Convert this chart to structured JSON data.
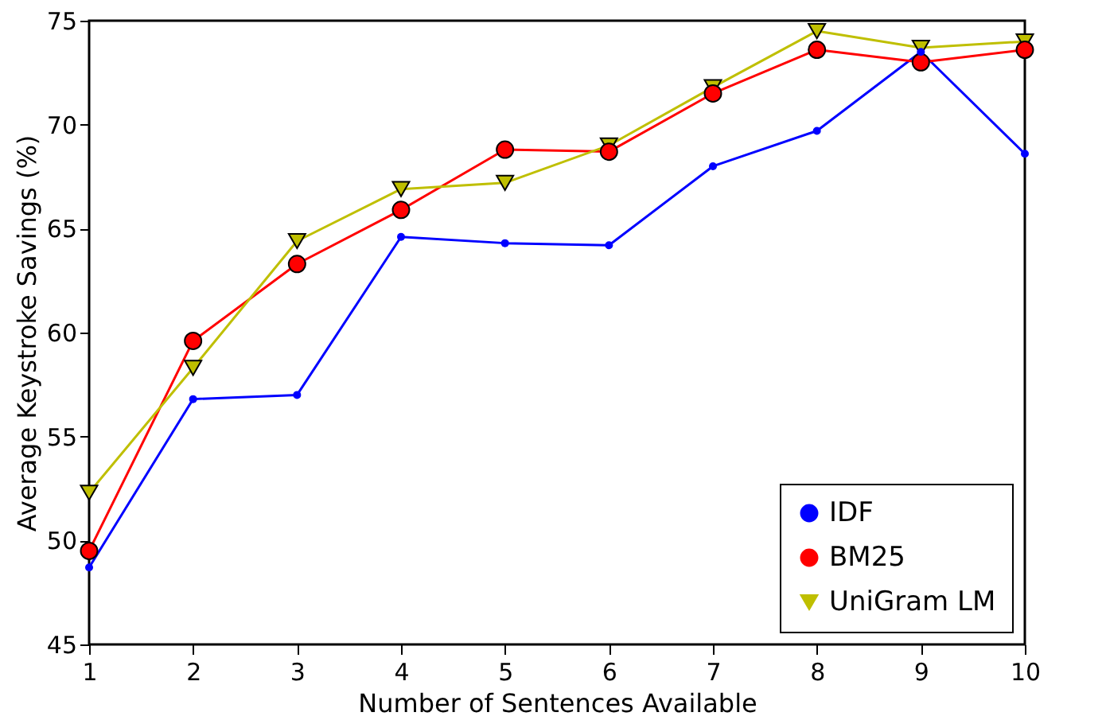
{
  "chart_data": {
    "type": "line",
    "xlabel": "Number of Sentences Available",
    "ylabel": "Average Keystroke Savings (%)",
    "x": [
      1,
      2,
      3,
      4,
      5,
      6,
      7,
      8,
      9,
      10
    ],
    "xlim": [
      1,
      10
    ],
    "xticks": [
      1,
      2,
      3,
      4,
      5,
      6,
      7,
      8,
      9,
      10
    ],
    "ylim": [
      45,
      75
    ],
    "yticks": [
      45,
      50,
      55,
      60,
      65,
      70,
      75
    ],
    "grid": false,
    "legend": "bottom right",
    "line_style": "solid",
    "series": [
      {
        "name": "IDF",
        "color": "#0000ff",
        "marker": "circle",
        "values": [
          48.7,
          56.8,
          57.0,
          64.6,
          64.3,
          64.2,
          68.0,
          69.7,
          73.5,
          68.6
        ]
      },
      {
        "name": "BM25",
        "color": "#ff0000",
        "marker": "circle",
        "values": [
          49.5,
          59.6,
          63.3,
          65.9,
          68.8,
          68.7,
          71.5,
          73.6,
          73.0,
          73.6
        ]
      },
      {
        "name": "UniGram LM",
        "color": "#bfbf00",
        "marker": "triangle-down",
        "values": [
          52.3,
          58.3,
          64.4,
          66.9,
          67.2,
          69.0,
          71.8,
          74.5,
          73.7,
          74.0
        ]
      }
    ]
  }
}
